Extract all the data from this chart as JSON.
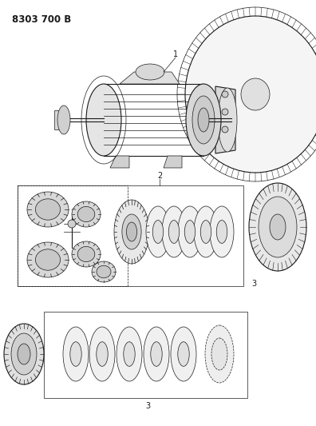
{
  "title": "8303 700 B",
  "bg_color": "#ffffff",
  "line_color": "#1a1a1a",
  "figsize": [
    3.96,
    5.33
  ],
  "dpi": 100,
  "label_1": "1",
  "label_2": "2",
  "label_3": "3"
}
